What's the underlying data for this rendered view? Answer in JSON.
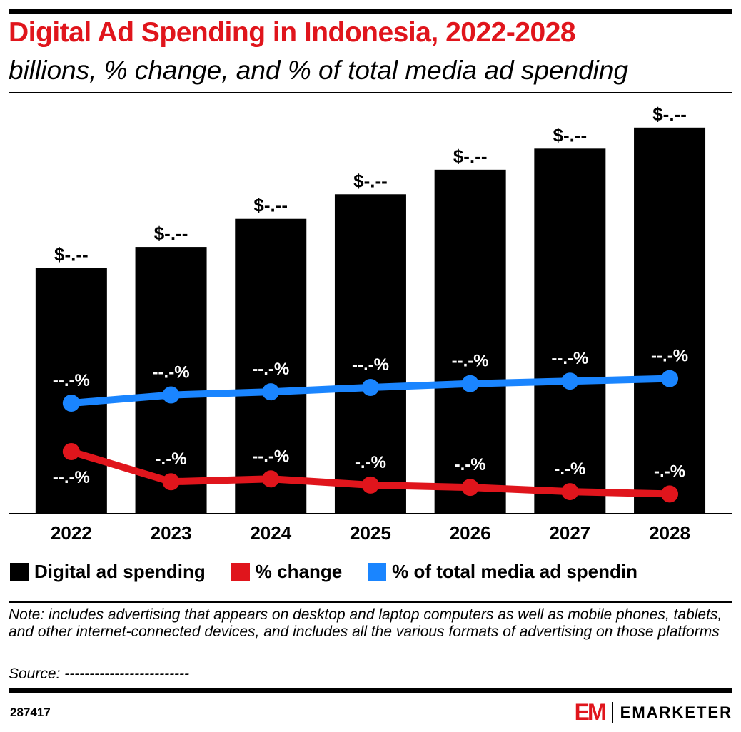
{
  "title": "Digital Ad Spending in Indonesia, 2022-2028",
  "subtitle": "billions, % change, and % of total media ad spending",
  "colors": {
    "bar": "#000000",
    "change": "#e0151c",
    "share": "#1a85ff",
    "title": "#e0151c"
  },
  "chart_data": {
    "type": "bar",
    "categories": [
      "2022",
      "2023",
      "2024",
      "2025",
      "2026",
      "2027",
      "2028"
    ],
    "series": [
      {
        "name": "Digital ad spending",
        "type": "bar",
        "values": [
          3.5,
          3.8,
          4.2,
          4.55,
          4.9,
          5.2,
          5.5
        ],
        "labels": [
          "$-.--",
          "$-.--",
          "$-.--",
          "$-.--",
          "$-.--",
          "$-.--",
          "$-.--"
        ]
      },
      {
        "name": "% change",
        "type": "line",
        "values": [
          12.8,
          6.4,
          7.0,
          5.7,
          5.2,
          4.3,
          3.8
        ],
        "labels": [
          "--.-%",
          "-.-%",
          "--.-%",
          "-.-%",
          "-.-%",
          "-.-%",
          "-.-%"
        ]
      },
      {
        "name": "% of total media ad spendin",
        "type": "line",
        "values": [
          22.1,
          23.4,
          23.9,
          24.6,
          25.2,
          25.6,
          26.0
        ],
        "labels": [
          "--.-%",
          "--.-%",
          "--.-%",
          "--.-%",
          "--.-%",
          "--.-%",
          "--.-%"
        ]
      }
    ],
    "grid": false,
    "legend_position": "bottom-left"
  },
  "legend": {
    "spending": "Digital ad spending",
    "change": "% change",
    "share": "% of total media ad spendin"
  },
  "note": "Note: includes advertising that appears on desktop and laptop computers as well as mobile phones, tablets, and other internet-connected devices, and includes all the various formats of advertising on those platforms",
  "source": "Source: -------------------------",
  "chart_id": "287417",
  "brand": {
    "logo": "EM",
    "name": "EMARKETER"
  }
}
